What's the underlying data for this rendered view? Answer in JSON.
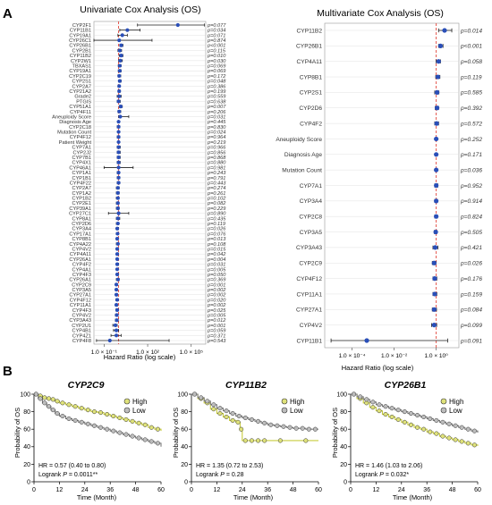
{
  "panel_letters": {
    "A": "A",
    "B": "B"
  },
  "colors": {
    "point": "#2a4fb8",
    "ref_line": "#e2443a",
    "grid": "#d9d9d9",
    "km_high_fill": "#dfe27a",
    "km_low_fill": "#bdbdbd",
    "km_high_line": "#c8cc3c",
    "km_low_line": "#7a7a7a",
    "km_mark": "#333333"
  },
  "chart_data": [
    {
      "type": "forest",
      "title": "Univariate Cox Analysis (OS)",
      "xlabel": "Hazard Ratio (log scale)",
      "xscale": "log",
      "xticks": [
        "1.0 × 10⁻¹",
        "1.0 × 10²",
        "1.0 × 10⁵"
      ],
      "xtick_values": [
        0.1,
        100,
        100000
      ],
      "xlim": [
        0.02,
        1000000
      ],
      "reference": 1,
      "grid": true,
      "rows": [
        {
          "label": "CYP2F1",
          "p": "p=0.077",
          "hr": 12000,
          "lo": 20,
          "hi": 800000
        },
        {
          "label": "CYP11B1",
          "p": "p=0.034",
          "hr": 4,
          "lo": 1.2,
          "hi": 30
        },
        {
          "label": "CYP19A1",
          "p": "p=0.071",
          "hr": 1.8,
          "lo": 0.9,
          "hi": 4
        },
        {
          "label": "CYP26C1",
          "p": "p=0.874",
          "hr": 1.1,
          "lo": 0.005,
          "hi": 200
        },
        {
          "label": "CYP26B1",
          "p": "p<0.001",
          "hr": 1.5,
          "lo": 1.2,
          "hi": 2
        },
        {
          "label": "CYP2B1",
          "p": "p=0.115",
          "hr": 1.2,
          "lo": 0.9,
          "hi": 1.6
        },
        {
          "label": "CYP11B2",
          "p": "p=0.010",
          "hr": 1.5,
          "lo": 1.1,
          "hi": 2
        },
        {
          "label": "CYP2W1",
          "p": "p=0.030",
          "hr": 1.3,
          "lo": 1,
          "hi": 1.8
        },
        {
          "label": "TBXAS1",
          "p": "p=0.069",
          "hr": 1.2,
          "lo": 0.95,
          "hi": 1.5
        },
        {
          "label": "CYP19A1",
          "p": "p=0.069",
          "hr": 1.2,
          "lo": 0.95,
          "hi": 1.5
        },
        {
          "label": "CYP2C19",
          "p": "p=0.172",
          "hr": 1.1,
          "lo": 0.9,
          "hi": 1.4
        },
        {
          "label": "CYP2S1",
          "p": "p=0.048",
          "hr": 1.2,
          "lo": 1,
          "hi": 1.5
        },
        {
          "label": "CYP2A7",
          "p": "p=0.386",
          "hr": 1.1,
          "lo": 0.9,
          "hi": 1.3
        },
        {
          "label": "CYP21A2",
          "p": "p=0.199",
          "hr": 1.1,
          "lo": 0.9,
          "hi": 1.3
        },
        {
          "label": "Grade2",
          "p": "p=0.559",
          "hr": 1.1,
          "lo": 0.8,
          "hi": 1.5
        },
        {
          "label": "PTGIS",
          "p": "p=0.638",
          "hr": 1,
          "lo": 0.8,
          "hi": 1.3
        },
        {
          "label": "CYP51A1",
          "p": "p=0.007",
          "hr": 1.4,
          "lo": 1.1,
          "hi": 1.8
        },
        {
          "label": "CYP4F11",
          "p": "p=0.206",
          "hr": 1.1,
          "lo": 0.9,
          "hi": 1.4
        },
        {
          "label": "Aneuploidy Score",
          "p": "p=0.031",
          "hr": 1.3,
          "lo": 1,
          "hi": 5
        },
        {
          "label": "Diagnosis Age",
          "p": "p=0.445",
          "hr": 1,
          "lo": 0.98,
          "hi": 1.03
        },
        {
          "label": "CYP2C18",
          "p": "p=0.830",
          "hr": 1,
          "lo": 0.8,
          "hi": 1.2
        },
        {
          "label": "Mutation Count",
          "p": "p=0.024",
          "hr": 1,
          "lo": 1,
          "hi": 1.01
        },
        {
          "label": "CYP4F12",
          "p": "p=0.964",
          "hr": 1,
          "lo": 0.8,
          "hi": 1.2
        },
        {
          "label": "Patient Weight",
          "p": "p=0.219",
          "hr": 1,
          "lo": 0.98,
          "hi": 1.01
        },
        {
          "label": "CYP7A1",
          "p": "p=0.966",
          "hr": 1,
          "lo": 0.8,
          "hi": 1.3
        },
        {
          "label": "CYP2J2",
          "p": "p=0.856",
          "hr": 1,
          "lo": 0.8,
          "hi": 1.3
        },
        {
          "label": "CYP7B1",
          "p": "p=0.868",
          "hr": 1,
          "lo": 0.8,
          "hi": 1.3
        },
        {
          "label": "CYP4X1",
          "p": "p=0.880",
          "hr": 1,
          "lo": 0.8,
          "hi": 1.3
        },
        {
          "label": "CYP46A1",
          "p": "p=0.981",
          "hr": 1,
          "lo": 0.1,
          "hi": 10
        },
        {
          "label": "CYP1A1",
          "p": "p=0.243",
          "hr": 1,
          "lo": 0.8,
          "hi": 1.1
        },
        {
          "label": "CYP1B1",
          "p": "p=0.791",
          "hr": 1,
          "lo": 0.8,
          "hi": 1.2
        },
        {
          "label": "CYP4F22",
          "p": "p=0.443",
          "hr": 1,
          "lo": 0.8,
          "hi": 1.2
        },
        {
          "label": "CYP2A7",
          "p": "p=0.274",
          "hr": 0.9,
          "lo": 0.7,
          "hi": 1.1
        },
        {
          "label": "CYP1A2",
          "p": "p=0.261",
          "hr": 0.9,
          "lo": 0.7,
          "hi": 1.1
        },
        {
          "label": "CYP1B2",
          "p": "p=0.102",
          "hr": 0.9,
          "lo": 0.7,
          "hi": 1
        },
        {
          "label": "CYP2E1",
          "p": "p=0.082",
          "hr": 0.9,
          "lo": 0.7,
          "hi": 1
        },
        {
          "label": "CYP39A1",
          "p": "p=0.229",
          "hr": 0.9,
          "lo": 0.7,
          "hi": 1.1
        },
        {
          "label": "CYP27C1",
          "p": "p=0.890",
          "hr": 1,
          "lo": 0.2,
          "hi": 5
        },
        {
          "label": "CYP8A1",
          "p": "p=0.435",
          "hr": 0.9,
          "lo": 0.7,
          "hi": 1.2
        },
        {
          "label": "CYP2D6",
          "p": "p=0.119",
          "hr": 0.9,
          "lo": 0.7,
          "hi": 1
        },
        {
          "label": "CYP3A4",
          "p": "p=0.026",
          "hr": 0.8,
          "lo": 0.7,
          "hi": 1
        },
        {
          "label": "CYP17A1",
          "p": "p=0.076",
          "hr": 0.85,
          "lo": 0.7,
          "hi": 1
        },
        {
          "label": "CYP8B1",
          "p": "p=0.013",
          "hr": 0.8,
          "lo": 0.7,
          "hi": 0.95
        },
        {
          "label": "CYP4A22",
          "p": "p=0.108",
          "hr": 0.9,
          "lo": 0.7,
          "hi": 1
        },
        {
          "label": "CYP4V2",
          "p": "p=0.015",
          "hr": 0.8,
          "lo": 0.7,
          "hi": 0.95
        },
        {
          "label": "CYP4A11",
          "p": "p=0.042",
          "hr": 0.8,
          "lo": 0.7,
          "hi": 1
        },
        {
          "label": "CYP26A1",
          "p": "p=0.004",
          "hr": 0.8,
          "lo": 0.7,
          "hi": 0.9
        },
        {
          "label": "CYP4F2",
          "p": "p=0.031",
          "hr": 0.8,
          "lo": 0.7,
          "hi": 1
        },
        {
          "label": "CYP4A1",
          "p": "p=0.005",
          "hr": 0.8,
          "lo": 0.7,
          "hi": 0.9
        },
        {
          "label": "CYP4F3",
          "p": "p=0.050",
          "hr": 0.8,
          "lo": 0.7,
          "hi": 1
        },
        {
          "label": "CYP26A1",
          "p": "p=0.369",
          "hr": 0.9,
          "lo": 0.7,
          "hi": 1.1
        },
        {
          "label": "CYP2C9",
          "p": "p=0.001",
          "hr": 0.7,
          "lo": 0.6,
          "hi": 0.85
        },
        {
          "label": "CYP3A5",
          "p": "p=0.002",
          "hr": 0.7,
          "lo": 0.6,
          "hi": 0.85
        },
        {
          "label": "CYP27A1",
          "p": "p=0.002",
          "hr": 0.7,
          "lo": 0.6,
          "hi": 0.85
        },
        {
          "label": "CYP4F12",
          "p": "p=0.020",
          "hr": 0.8,
          "lo": 0.65,
          "hi": 0.95
        },
        {
          "label": "CYP11A1",
          "p": "p=0.002",
          "hr": 0.7,
          "lo": 0.6,
          "hi": 0.85
        },
        {
          "label": "CYP4F3",
          "p": "p=0.025",
          "hr": 0.8,
          "lo": 0.65,
          "hi": 0.97
        },
        {
          "label": "CYP4V2",
          "p": "p=0.005",
          "hr": 0.75,
          "lo": 0.6,
          "hi": 0.9
        },
        {
          "label": "CYP3A43",
          "p": "p=0.012",
          "hr": 0.75,
          "lo": 0.6,
          "hi": 0.95
        },
        {
          "label": "CYP2U1",
          "p": "p=0.001",
          "hr": 0.6,
          "lo": 0.4,
          "hi": 0.8
        },
        {
          "label": "CYP4B1",
          "p": "p=0.059",
          "hr": 0.7,
          "lo": 0.45,
          "hi": 1
        },
        {
          "label": "CYP4Z1",
          "p": "p=0.371",
          "hr": 0.7,
          "lo": 0.3,
          "hi": 1.5
        },
        {
          "label": "CYP4F8",
          "p": "p=0.543",
          "hr": 0.25,
          "lo": 0.03,
          "hi": 3000
        }
      ]
    },
    {
      "type": "forest",
      "title": "Multivariate Cox Analysis (OS)",
      "xlabel": "Hazard Ratio (log scale)",
      "xscale": "log",
      "xticks": [
        "1.0 × 10⁻⁴",
        "1.0 × 10⁻²",
        "1.0 × 10⁰"
      ],
      "xtick_values": [
        0.0001,
        0.01,
        1
      ],
      "xlim": [
        5e-06,
        12
      ],
      "reference": 1,
      "grid": true,
      "rows": [
        {
          "label": "CYP11B2",
          "p": "p=0.014",
          "hr": 2.5,
          "lo": 1.3,
          "hi": 5.5
        },
        {
          "label": "CYP26B1",
          "p": "p<0.001",
          "hr": 1.6,
          "lo": 1.3,
          "hi": 2.1
        },
        {
          "label": "CYP4A11",
          "p": "p=0.058",
          "hr": 1.3,
          "lo": 1,
          "hi": 1.6
        },
        {
          "label": "CYP8B1",
          "p": "p=0.119",
          "hr": 1.2,
          "lo": 0.95,
          "hi": 1.5
        },
        {
          "label": "CYP2S1",
          "p": "p=0.585",
          "hr": 1.1,
          "lo": 0.85,
          "hi": 1.35
        },
        {
          "label": "CYP2D6",
          "p": "p=0.392",
          "hr": 1.1,
          "lo": 0.9,
          "hi": 1.3
        },
        {
          "label": "CYP4F2",
          "p": "p=0.572",
          "hr": 1.05,
          "lo": 0.85,
          "hi": 1.3
        },
        {
          "label": "Aneuploidy Score",
          "p": "p=0.252",
          "hr": 1,
          "lo": 0.98,
          "hi": 1.03
        },
        {
          "label": "Diagnosis Age",
          "p": "p=0.171",
          "hr": 1,
          "lo": 0.99,
          "hi": 1.02
        },
        {
          "label": "Mutation Count",
          "p": "p=0.036",
          "hr": 1,
          "lo": 1,
          "hi": 1.01
        },
        {
          "label": "CYP7A1",
          "p": "p=0.952",
          "hr": 1,
          "lo": 0.85,
          "hi": 1.2
        },
        {
          "label": "CYP3A4",
          "p": "p=0.914",
          "hr": 1,
          "lo": 0.85,
          "hi": 1.15
        },
        {
          "label": "CYP2C8",
          "p": "p=0.824",
          "hr": 1,
          "lo": 0.85,
          "hi": 1.15
        },
        {
          "label": "CYP3A5",
          "p": "p=0.505",
          "hr": 0.95,
          "lo": 0.8,
          "hi": 1.1
        },
        {
          "label": "CYP3A43",
          "p": "p=0.421",
          "hr": 0.9,
          "lo": 0.7,
          "hi": 1.2
        },
        {
          "label": "CYP2C9",
          "p": "p=0.026",
          "hr": 0.8,
          "lo": 0.65,
          "hi": 0.97
        },
        {
          "label": "CYP4F12",
          "p": "p=0.176",
          "hr": 0.85,
          "lo": 0.7,
          "hi": 1.07
        },
        {
          "label": "CYP11A1",
          "p": "p=0.159",
          "hr": 0.85,
          "lo": 0.7,
          "hi": 1.07
        },
        {
          "label": "CYP27A1",
          "p": "p=0.084",
          "hr": 0.8,
          "lo": 0.65,
          "hi": 1.03
        },
        {
          "label": "CYP4V2",
          "p": "p=0.099",
          "hr": 0.8,
          "lo": 0.6,
          "hi": 1.05
        },
        {
          "label": "CYP11B1",
          "p": "p=0.091",
          "hr": 0.0005,
          "lo": 1e-05,
          "hi": 3.5
        }
      ]
    },
    {
      "type": "line",
      "subtype": "kaplan-meier",
      "title": "CYP2C9",
      "xlabel": "Time (Month)",
      "ylabel": "Probability of OS",
      "xlim": [
        0,
        60
      ],
      "ylim": [
        0,
        100
      ],
      "xticks": [
        0,
        12,
        24,
        36,
        48,
        60
      ],
      "yticks": [
        0,
        20,
        40,
        60,
        80,
        100
      ],
      "legend": "top-right",
      "legend_labels": [
        "High",
        "Low"
      ],
      "stats": {
        "hr": "HR = 0.57 (0.40 to 0.80)",
        "logrank": "Logrank ",
        "p_label": "P",
        "p_value": " = 0.0011**"
      },
      "series": [
        {
          "name": "High",
          "x": [
            0,
            2,
            4,
            6,
            8,
            10,
            12,
            15,
            18,
            21,
            24,
            27,
            30,
            33,
            36,
            39,
            42,
            45,
            48,
            51,
            54,
            57,
            60
          ],
          "y": [
            100,
            98,
            96,
            95,
            94,
            92,
            90,
            88,
            86,
            84,
            82,
            80,
            79,
            77,
            75,
            73,
            71,
            69,
            67,
            65,
            62,
            60,
            58
          ]
        },
        {
          "name": "Low",
          "x": [
            0,
            2,
            4,
            6,
            8,
            10,
            12,
            15,
            18,
            21,
            24,
            27,
            30,
            33,
            36,
            39,
            42,
            45,
            48,
            51,
            54,
            57,
            60
          ],
          "y": [
            100,
            95,
            90,
            86,
            82,
            78,
            75,
            72,
            70,
            68,
            66,
            64,
            62,
            60,
            58,
            56,
            54,
            52,
            50,
            48,
            46,
            44,
            40
          ]
        }
      ]
    },
    {
      "type": "line",
      "subtype": "kaplan-meier",
      "title": "CYP11B2",
      "xlabel": "Time (Month)",
      "ylabel": "Probability of OS",
      "xlim": [
        0,
        60
      ],
      "ylim": [
        0,
        100
      ],
      "xticks": [
        0,
        12,
        24,
        36,
        48,
        60
      ],
      "yticks": [
        0,
        20,
        40,
        60,
        80,
        100
      ],
      "legend": "top-right",
      "legend_labels": [
        "High",
        "Low"
      ],
      "stats": {
        "hr": "HR = 1.35 (0.72 to 2.53)",
        "logrank": "Logrank ",
        "p_label": "P",
        "p_value": " = 0.28"
      },
      "series": [
        {
          "name": "High",
          "x": [
            0,
            3,
            6,
            9,
            12,
            15,
            18,
            21,
            23,
            24,
            27,
            30,
            33,
            36,
            48,
            60
          ],
          "y": [
            100,
            95,
            90,
            83,
            78,
            74,
            70,
            68,
            60,
            47,
            47,
            47,
            47,
            47,
            47,
            47
          ]
        },
        {
          "name": "Low",
          "x": [
            0,
            3,
            6,
            9,
            12,
            15,
            18,
            21,
            24,
            27,
            30,
            33,
            36,
            39,
            42,
            45,
            48,
            51,
            54,
            57,
            60
          ],
          "y": [
            100,
            96,
            92,
            88,
            84,
            81,
            78,
            75,
            73,
            71,
            69,
            67,
            65,
            64,
            63,
            62,
            61,
            61,
            60,
            60,
            60
          ]
        }
      ]
    },
    {
      "type": "line",
      "subtype": "kaplan-meier",
      "title": "CYP26B1",
      "xlabel": "Time (Month)",
      "ylabel": "Probability of OS",
      "xlim": [
        0,
        60
      ],
      "ylim": [
        0,
        100
      ],
      "xticks": [
        0,
        12,
        24,
        36,
        48,
        60
      ],
      "yticks": [
        0,
        20,
        40,
        60,
        80,
        100
      ],
      "legend": "top-right",
      "legend_labels": [
        "High",
        "Low"
      ],
      "stats": {
        "hr": "HR = 1.46 (1.03 to 2.06)",
        "logrank": "Logrank ",
        "p_label": "P",
        "p_value": " = 0.032*"
      },
      "series": [
        {
          "name": "High",
          "x": [
            0,
            3,
            6,
            9,
            12,
            15,
            18,
            21,
            24,
            27,
            30,
            33,
            36,
            39,
            42,
            45,
            48,
            51,
            54,
            57,
            60
          ],
          "y": [
            100,
            95,
            90,
            85,
            81,
            77,
            74,
            71,
            68,
            65,
            62,
            60,
            57,
            55,
            52,
            50,
            48,
            46,
            44,
            42,
            41
          ]
        },
        {
          "name": "Low",
          "x": [
            0,
            3,
            6,
            9,
            12,
            15,
            18,
            21,
            24,
            27,
            30,
            33,
            36,
            39,
            42,
            45,
            48,
            51,
            54,
            57,
            60
          ],
          "y": [
            100,
            97,
            94,
            91,
            88,
            86,
            84,
            82,
            80,
            78,
            76,
            74,
            72,
            70,
            68,
            66,
            64,
            62,
            60,
            58,
            56
          ]
        }
      ]
    }
  ]
}
